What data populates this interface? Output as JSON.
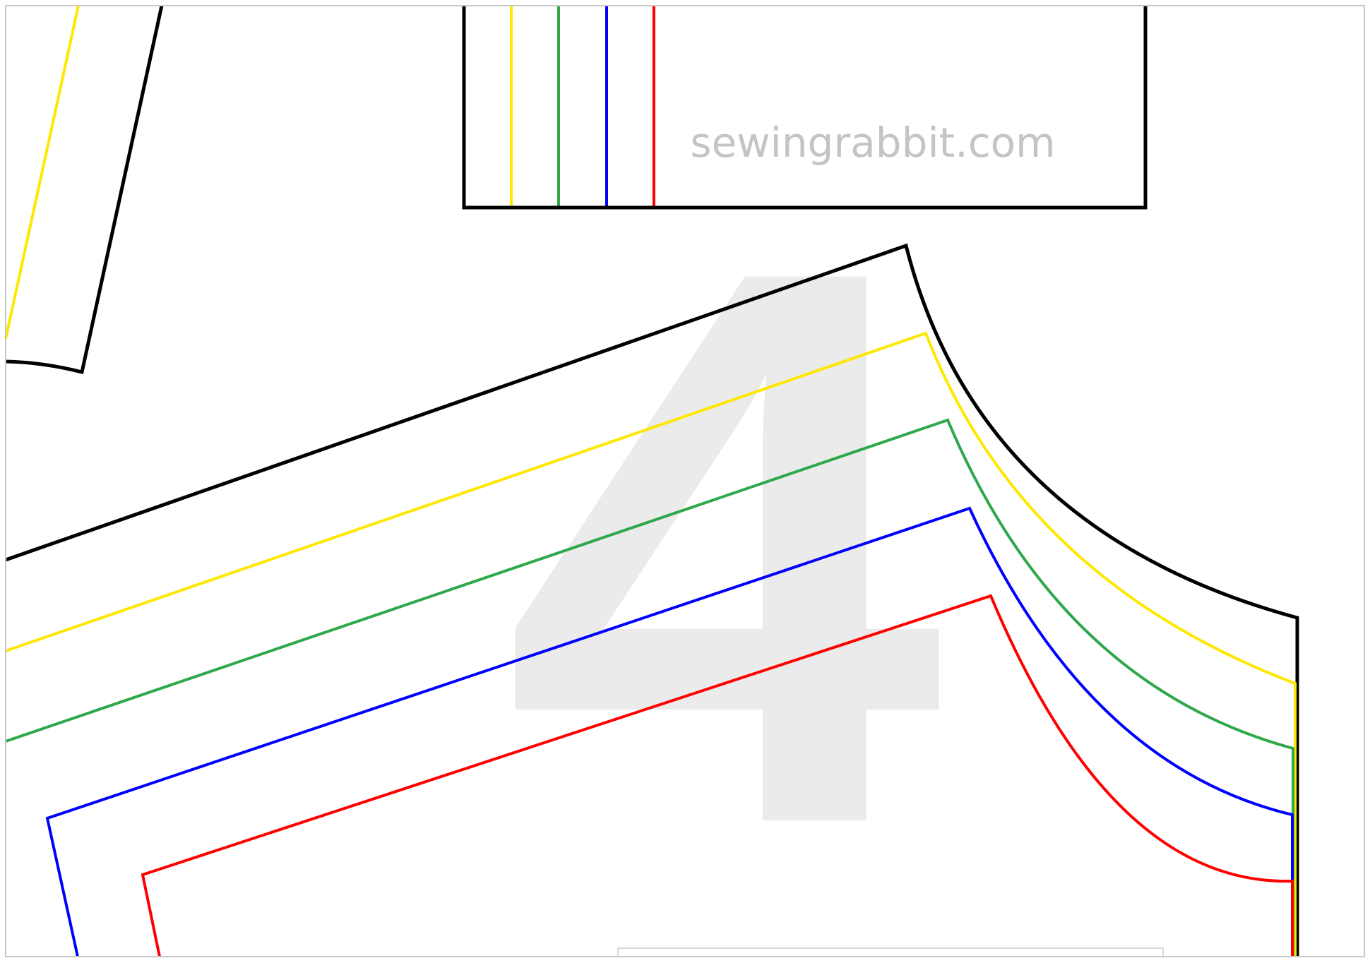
{
  "sheet": {
    "page_number": "4",
    "watermark": "sewingrabbit.com"
  },
  "colors": {
    "background": "#ffffff",
    "page_border": "#c8c8c8",
    "page_number": "#ebebeb",
    "watermark": "#c4c4c4",
    "outline": "#000000",
    "size_yellow": "#ffe800",
    "size_green": "#2ea84a",
    "size_blue": "#0000ff",
    "size_red": "#ff0000",
    "tape_strip": "#d8d8d8"
  }
}
